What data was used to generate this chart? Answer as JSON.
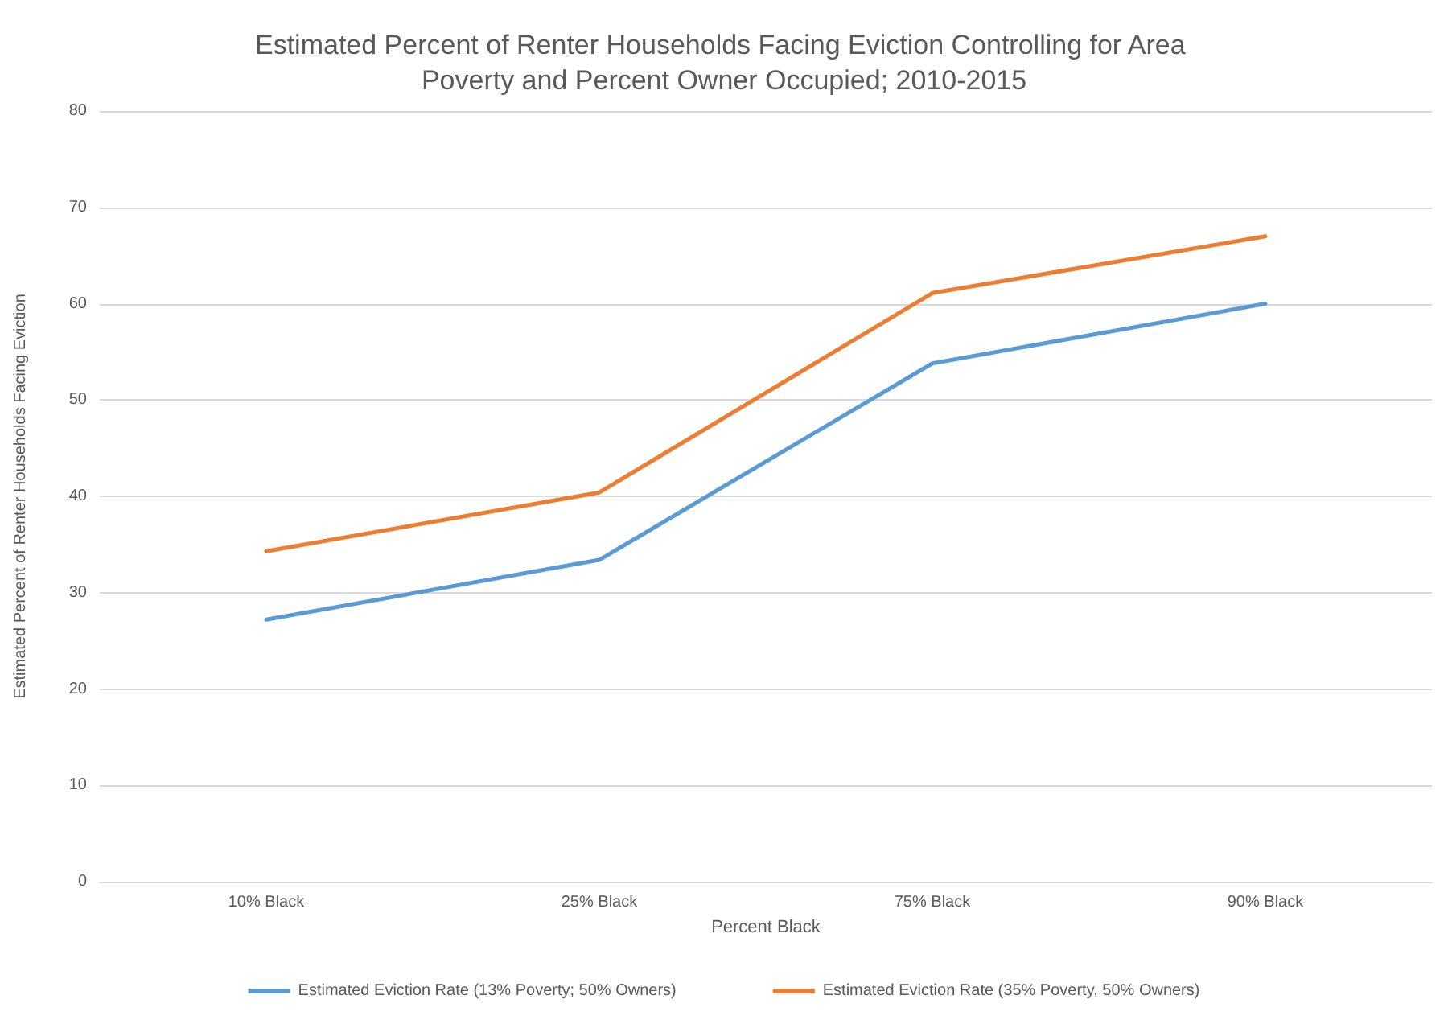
{
  "chart_data": {
    "type": "line",
    "title": "Estimated Percent of Renter Households Facing Eviction Controlling for Area Poverty and Percent Owner Occupied; 2010-2015",
    "xlabel": "Percent Black",
    "ylabel": "Estimated Percent of Renter Households Facing Eviction",
    "categories": [
      "10% Black",
      "25% Black",
      "75% Black",
      "90% Black"
    ],
    "series": [
      {
        "name": "Estimated Eviction Rate (13% Poverty; 50% Owners)",
        "color": "#5b9bd5",
        "values": [
          27.2,
          33.4,
          53.8,
          60.0
        ]
      },
      {
        "name": "Estimated Eviction Rate (35% Poverty, 50% Owners)",
        "color": "#ed7d31",
        "values": [
          34.3,
          40.4,
          61.1,
          67.0
        ]
      }
    ],
    "ylim": [
      0,
      80
    ],
    "yticks": [
      0,
      10,
      20,
      30,
      40,
      50,
      60,
      70,
      80
    ],
    "grid": "y",
    "legend": "bottom",
    "marker": "none",
    "line_style": "solid"
  }
}
